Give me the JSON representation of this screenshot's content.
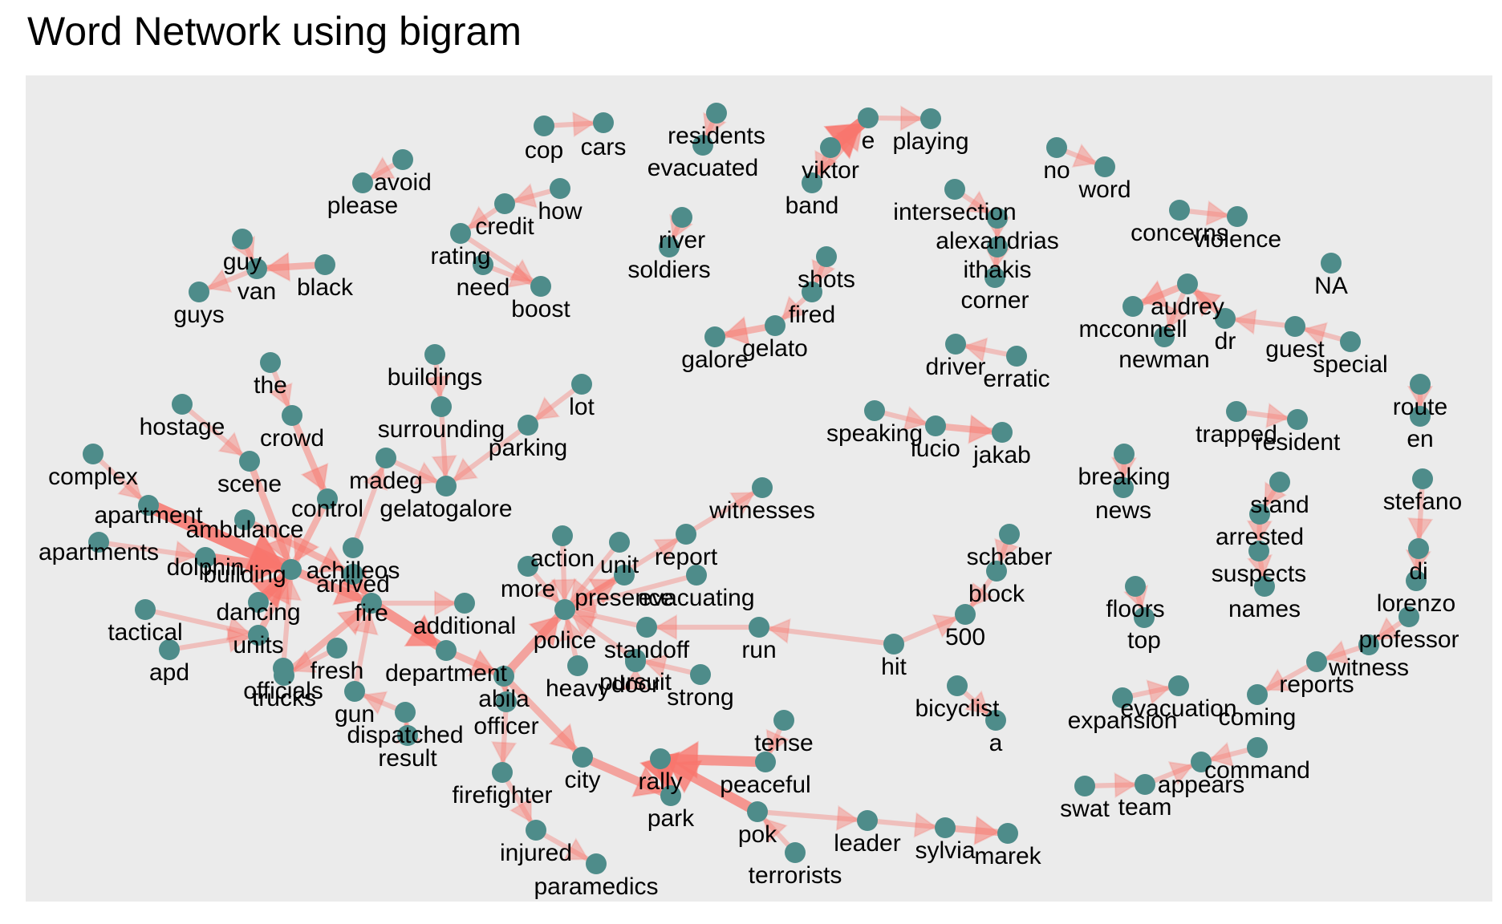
{
  "title": "Word Network using bigram",
  "colors": {
    "panel": "#ebebeb",
    "edge": "#f8766d",
    "node": "#4e8c8a"
  },
  "nodes": [
    {
      "id": "cop",
      "label": "cop"
    },
    {
      "id": "cars",
      "label": "cars"
    },
    {
      "id": "residents",
      "label": "residents"
    },
    {
      "id": "evacuated",
      "label": "evacuated"
    },
    {
      "id": "e",
      "label": "e"
    },
    {
      "id": "playing",
      "label": "playing"
    },
    {
      "id": "viktor",
      "label": "viktor"
    },
    {
      "id": "band",
      "label": "band"
    },
    {
      "id": "no",
      "label": "no"
    },
    {
      "id": "word",
      "label": "word"
    },
    {
      "id": "avoid",
      "label": "avoid"
    },
    {
      "id": "please",
      "label": "please"
    },
    {
      "id": "how",
      "label": "how"
    },
    {
      "id": "credit",
      "label": "credit"
    },
    {
      "id": "rating",
      "label": "rating"
    },
    {
      "id": "need",
      "label": "need"
    },
    {
      "id": "boost",
      "label": "boost"
    },
    {
      "id": "river",
      "label": "river"
    },
    {
      "id": "soldiers",
      "label": "soldiers"
    },
    {
      "id": "intersection",
      "label": "intersection"
    },
    {
      "id": "alexandrias",
      "label": "alexandrias"
    },
    {
      "id": "ithakis",
      "label": "ithakis"
    },
    {
      "id": "corner",
      "label": "corner"
    },
    {
      "id": "concerns",
      "label": "concerns"
    },
    {
      "id": "violence",
      "label": "violence"
    },
    {
      "id": "guy",
      "label": "guy"
    },
    {
      "id": "van",
      "label": "van"
    },
    {
      "id": "black",
      "label": "black"
    },
    {
      "id": "guys",
      "label": "guys"
    },
    {
      "id": "shots",
      "label": "shots"
    },
    {
      "id": "fired",
      "label": "fired"
    },
    {
      "id": "gelato",
      "label": "gelato"
    },
    {
      "id": "galore",
      "label": "galore"
    },
    {
      "id": "na",
      "label": "NA"
    },
    {
      "id": "audrey",
      "label": "audrey"
    },
    {
      "id": "mcconnell",
      "label": "mcconnell"
    },
    {
      "id": "newman",
      "label": "newman"
    },
    {
      "id": "dr",
      "label": "dr"
    },
    {
      "id": "guest",
      "label": "guest"
    },
    {
      "id": "special",
      "label": "special"
    },
    {
      "id": "driver",
      "label": "driver"
    },
    {
      "id": "erratic",
      "label": "erratic"
    },
    {
      "id": "the",
      "label": "the"
    },
    {
      "id": "buildings",
      "label": "buildings"
    },
    {
      "id": "lot",
      "label": "lot"
    },
    {
      "id": "hostage",
      "label": "hostage"
    },
    {
      "id": "crowd",
      "label": "crowd"
    },
    {
      "id": "surrounding",
      "label": "surrounding"
    },
    {
      "id": "parking",
      "label": "parking"
    },
    {
      "id": "speaking",
      "label": "speaking"
    },
    {
      "id": "lucio",
      "label": "lucio"
    },
    {
      "id": "jakab",
      "label": "jakab"
    },
    {
      "id": "route",
      "label": "route"
    },
    {
      "id": "en",
      "label": "en"
    },
    {
      "id": "trapped",
      "label": "trapped"
    },
    {
      "id": "resident",
      "label": "resident"
    },
    {
      "id": "complex",
      "label": "complex"
    },
    {
      "id": "scene",
      "label": "scene"
    },
    {
      "id": "madeg",
      "label": "madeg"
    },
    {
      "id": "gelatogalore",
      "label": "gelatogalore"
    },
    {
      "id": "breaking",
      "label": "breaking"
    },
    {
      "id": "news",
      "label": "news"
    },
    {
      "id": "stand",
      "label": "stand"
    },
    {
      "id": "stefano",
      "label": "stefano"
    },
    {
      "id": "witnesses",
      "label": "witnesses"
    },
    {
      "id": "apartment",
      "label": "apartment"
    },
    {
      "id": "ambulance",
      "label": "ambulance"
    },
    {
      "id": "control",
      "label": "control"
    },
    {
      "id": "achilleos",
      "label": "achilleos"
    },
    {
      "id": "arrested",
      "label": "arrested"
    },
    {
      "id": "di",
      "label": "di"
    },
    {
      "id": "apartments",
      "label": "apartments"
    },
    {
      "id": "dolphin",
      "label": "dolphin"
    },
    {
      "id": "building",
      "label": "building"
    },
    {
      "id": "arrived",
      "label": "arrived"
    },
    {
      "id": "action",
      "label": "action"
    },
    {
      "id": "unit",
      "label": "unit"
    },
    {
      "id": "report",
      "label": "report"
    },
    {
      "id": "schaber",
      "label": "schaber"
    },
    {
      "id": "suspects",
      "label": "suspects"
    },
    {
      "id": "lorenzo",
      "label": "lorenzo"
    },
    {
      "id": "dancing",
      "label": "dancing"
    },
    {
      "id": "more",
      "label": "more"
    },
    {
      "id": "presence",
      "label": "presence"
    },
    {
      "id": "evacuating",
      "label": "evacuating"
    },
    {
      "id": "block",
      "label": "block"
    },
    {
      "id": "names",
      "label": "names"
    },
    {
      "id": "floors",
      "label": "floors"
    },
    {
      "id": "professor",
      "label": "professor"
    },
    {
      "id": "tactical",
      "label": "tactical"
    },
    {
      "id": "units",
      "label": "units"
    },
    {
      "id": "fire",
      "label": "fire"
    },
    {
      "id": "additional",
      "label": "additional"
    },
    {
      "id": "police",
      "label": "police"
    },
    {
      "id": "standoff",
      "label": "standoff"
    },
    {
      "id": "500",
      "label": "500"
    },
    {
      "id": "top",
      "label": "top"
    },
    {
      "id": "apd",
      "label": "apd"
    },
    {
      "id": "officials",
      "label": "officials"
    },
    {
      "id": "pursuit",
      "label": "pursuit"
    },
    {
      "id": "run",
      "label": "run"
    },
    {
      "id": "hit",
      "label": "hit"
    },
    {
      "id": "witness",
      "label": "witness"
    },
    {
      "id": "trucks",
      "label": "trucks"
    },
    {
      "id": "fresh",
      "label": "fresh"
    },
    {
      "id": "department",
      "label": "department"
    },
    {
      "id": "heavy",
      "label": "heavy"
    },
    {
      "id": "door",
      "label": "door"
    },
    {
      "id": "strong",
      "label": "strong"
    },
    {
      "id": "reports",
      "label": "reports"
    },
    {
      "id": "bicyclist",
      "label": "bicyclist"
    },
    {
      "id": "gun",
      "label": "gun"
    },
    {
      "id": "abila",
      "label": "abila"
    },
    {
      "id": "expansion",
      "label": "expansion"
    },
    {
      "id": "evacuation",
      "label": "evacuation"
    },
    {
      "id": "coming",
      "label": "coming"
    },
    {
      "id": "dispatched",
      "label": "dispatched"
    },
    {
      "id": "officer",
      "label": "officer"
    },
    {
      "id": "tense",
      "label": "tense"
    },
    {
      "id": "a",
      "label": "a"
    },
    {
      "id": "result",
      "label": "result"
    },
    {
      "id": "command",
      "label": "command"
    },
    {
      "id": "firefighter",
      "label": "firefighter"
    },
    {
      "id": "city",
      "label": "city"
    },
    {
      "id": "rally",
      "label": "rally"
    },
    {
      "id": "peaceful",
      "label": "peaceful"
    },
    {
      "id": "appears",
      "label": "appears"
    },
    {
      "id": "swat",
      "label": "swat"
    },
    {
      "id": "team",
      "label": "team"
    },
    {
      "id": "park",
      "label": "park"
    },
    {
      "id": "injured",
      "label": "injured"
    },
    {
      "id": "pok",
      "label": "pok"
    },
    {
      "id": "leader",
      "label": "leader"
    },
    {
      "id": "sylvia",
      "label": "sylvia"
    },
    {
      "id": "marek",
      "label": "marek"
    },
    {
      "id": "terrorists",
      "label": "terrorists"
    },
    {
      "id": "paramedics",
      "label": "paramedics"
    }
  ],
  "edges": [
    {
      "from": "cop",
      "to": "cars",
      "n": 1
    },
    {
      "from": "residents",
      "to": "evacuated",
      "n": 1
    },
    {
      "from": "viktor",
      "to": "e",
      "n": 5
    },
    {
      "from": "band",
      "to": "e",
      "n": 2
    },
    {
      "from": "e",
      "to": "playing",
      "n": 1
    },
    {
      "from": "no",
      "to": "word",
      "n": 1
    },
    {
      "from": "avoid",
      "to": "please",
      "n": 1
    },
    {
      "from": "how",
      "to": "credit",
      "n": 1
    },
    {
      "from": "credit",
      "to": "rating",
      "n": 1
    },
    {
      "from": "need",
      "to": "boost",
      "n": 1
    },
    {
      "from": "rating",
      "to": "boost",
      "n": 1
    },
    {
      "from": "river",
      "to": "soldiers",
      "n": 1
    },
    {
      "from": "intersection",
      "to": "alexandrias",
      "n": 1
    },
    {
      "from": "alexandrias",
      "to": "ithakis",
      "n": 1
    },
    {
      "from": "ithakis",
      "to": "corner",
      "n": 1
    },
    {
      "from": "concerns",
      "to": "violence",
      "n": 1
    },
    {
      "from": "black",
      "to": "van",
      "n": 2
    },
    {
      "from": "guy",
      "to": "van",
      "n": 1
    },
    {
      "from": "van",
      "to": "guys",
      "n": 1
    },
    {
      "from": "shots",
      "to": "fired",
      "n": 1
    },
    {
      "from": "fired",
      "to": "gelato",
      "n": 1
    },
    {
      "from": "gelato",
      "to": "galore",
      "n": 2
    },
    {
      "from": "audrey",
      "to": "mcconnell",
      "n": 2
    },
    {
      "from": "dr",
      "to": "audrey",
      "n": 2
    },
    {
      "from": "audrey",
      "to": "newman",
      "n": 1
    },
    {
      "from": "guest",
      "to": "dr",
      "n": 1
    },
    {
      "from": "special",
      "to": "guest",
      "n": 1
    },
    {
      "from": "erratic",
      "to": "driver",
      "n": 1
    },
    {
      "from": "speaking",
      "to": "lucio",
      "n": 1
    },
    {
      "from": "lucio",
      "to": "jakab",
      "n": 2
    },
    {
      "from": "route",
      "to": "en",
      "n": 1
    },
    {
      "from": "trapped",
      "to": "resident",
      "n": 1
    },
    {
      "from": "breaking",
      "to": "news",
      "n": 1
    },
    {
      "from": "stand",
      "to": "arrested",
      "n": 1
    },
    {
      "from": "arrested",
      "to": "suspects",
      "n": 1
    },
    {
      "from": "suspects",
      "to": "names",
      "n": 1
    },
    {
      "from": "stefano",
      "to": "di",
      "n": 1
    },
    {
      "from": "di",
      "to": "lorenzo",
      "n": 1
    },
    {
      "from": "floors",
      "to": "top",
      "n": 1
    },
    {
      "from": "professor",
      "to": "witness",
      "n": 1
    },
    {
      "from": "witness",
      "to": "reports",
      "n": 1
    },
    {
      "from": "reports",
      "to": "coming",
      "n": 1
    },
    {
      "from": "expansion",
      "to": "evacuation",
      "n": 1
    },
    {
      "from": "command",
      "to": "appears",
      "n": 1
    },
    {
      "from": "swat",
      "to": "team",
      "n": 1
    },
    {
      "from": "team",
      "to": "appears",
      "n": 1
    },
    {
      "from": "schaber",
      "to": "block",
      "n": 1
    },
    {
      "from": "block",
      "to": "500",
      "n": 1
    },
    {
      "from": "hit",
      "to": "run",
      "n": 1
    },
    {
      "from": "bicyclist",
      "to": "a",
      "n": 1
    },
    {
      "from": "hit",
      "to": "500",
      "n": 1
    },
    {
      "from": "lot",
      "to": "parking",
      "n": 1
    },
    {
      "from": "buildings",
      "to": "surrounding",
      "n": 1
    },
    {
      "from": "surrounding",
      "to": "gelatogalore",
      "n": 1
    },
    {
      "from": "parking",
      "to": "gelatogalore",
      "n": 1
    },
    {
      "from": "madeg",
      "to": "gelatogalore",
      "n": 1
    },
    {
      "from": "the",
      "to": "crowd",
      "n": 1
    },
    {
      "from": "crowd",
      "to": "control",
      "n": 2
    },
    {
      "from": "hostage",
      "to": "scene",
      "n": 1
    },
    {
      "from": "scene",
      "to": "building",
      "n": 2
    },
    {
      "from": "complex",
      "to": "apartment",
      "n": 1
    },
    {
      "from": "apartment",
      "to": "building",
      "n": 6
    },
    {
      "from": "apartments",
      "to": "dolphin",
      "n": 1
    },
    {
      "from": "dolphin",
      "to": "building",
      "n": 4
    },
    {
      "from": "ambulance",
      "to": "arrived",
      "n": 2
    },
    {
      "from": "control",
      "to": "building",
      "n": 2
    },
    {
      "from": "achilleos",
      "to": "madeg",
      "n": 1
    },
    {
      "from": "building",
      "to": "fire",
      "n": 3
    },
    {
      "from": "dancing",
      "to": "building",
      "n": 4
    },
    {
      "from": "tactical",
      "to": "units",
      "n": 1
    },
    {
      "from": "units",
      "to": "building",
      "n": 2
    },
    {
      "from": "apd",
      "to": "units",
      "n": 1
    },
    {
      "from": "officials",
      "to": "building",
      "n": 1
    },
    {
      "from": "trucks",
      "to": "fire",
      "n": 2
    },
    {
      "from": "fresh",
      "to": "trucks",
      "n": 1
    },
    {
      "from": "fire",
      "to": "department",
      "n": 4
    },
    {
      "from": "fire",
      "to": "additional",
      "n": 1
    },
    {
      "from": "arrived",
      "to": "fire",
      "n": 2
    },
    {
      "from": "department",
      "to": "abila",
      "n": 2
    },
    {
      "from": "gun",
      "to": "fire",
      "n": 1
    },
    {
      "from": "dispatched",
      "to": "gun",
      "n": 1
    },
    {
      "from": "result",
      "to": "dispatched",
      "n": 1
    },
    {
      "from": "abila",
      "to": "police",
      "n": 3
    },
    {
      "from": "police",
      "to": "presence",
      "n": 2
    },
    {
      "from": "police",
      "to": "report",
      "n": 1
    },
    {
      "from": "action",
      "to": "police",
      "n": 1
    },
    {
      "from": "more",
      "to": "police",
      "n": 1
    },
    {
      "from": "unit",
      "to": "police",
      "n": 1
    },
    {
      "from": "report",
      "to": "witnesses",
      "n": 1
    },
    {
      "from": "evacuating",
      "to": "police",
      "n": 1
    },
    {
      "from": "standoff",
      "to": "police",
      "n": 1
    },
    {
      "from": "heavy",
      "to": "police",
      "n": 1
    },
    {
      "from": "run",
      "to": "standoff",
      "n": 1
    },
    {
      "from": "pursuit",
      "to": "police",
      "n": 1
    },
    {
      "from": "door",
      "to": "pursuit",
      "n": 1
    },
    {
      "from": "strong",
      "to": "pursuit",
      "n": 1
    },
    {
      "from": "abila",
      "to": "officer",
      "n": 1
    },
    {
      "from": "officer",
      "to": "firefighter",
      "n": 1
    },
    {
      "from": "firefighter",
      "to": "injured",
      "n": 1
    },
    {
      "from": "injured",
      "to": "paramedics",
      "n": 1
    },
    {
      "from": "abila",
      "to": "city",
      "n": 2
    },
    {
      "from": "city",
      "to": "park",
      "n": 3
    },
    {
      "from": "rally",
      "to": "park",
      "n": 5
    },
    {
      "from": "peaceful",
      "to": "rally",
      "n": 4
    },
    {
      "from": "tense",
      "to": "peaceful",
      "n": 1
    },
    {
      "from": "pok",
      "to": "rally",
      "n": 4
    },
    {
      "from": "pok",
      "to": "leader",
      "n": 1
    },
    {
      "from": "leader",
      "to": "sylvia",
      "n": 1
    },
    {
      "from": "sylvia",
      "to": "marek",
      "n": 2
    },
    {
      "from": "terrorists",
      "to": "pok",
      "n": 1
    },
    {
      "from": "viktor",
      "to": "band",
      "n": 1
    }
  ]
}
